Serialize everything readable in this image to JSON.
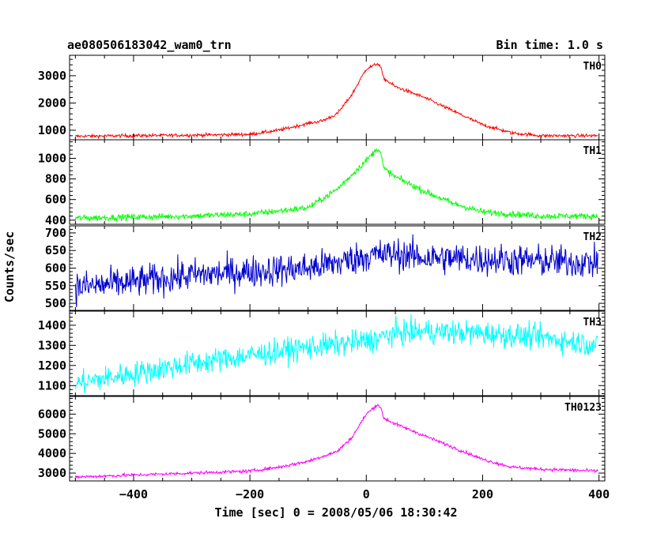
{
  "header": {
    "title": "ae080506183042_wam0_trn",
    "bin_time": "Bin time: 1.0 s"
  },
  "chart_data": {
    "type": "line",
    "xlabel": "Time [sec] 0 = 2008/05/06 18:30:42",
    "ylabel": "Counts/sec",
    "xlim": [
      -510,
      410
    ],
    "xticks": [
      -400,
      -200,
      0,
      200,
      400
    ],
    "x_tick_labels": [
      "−400",
      "−200",
      "0",
      "200",
      "400"
    ],
    "grid": false,
    "panels": [
      {
        "name": "TH0",
        "color": "#ff0000",
        "ylim": [
          650,
          3750
        ],
        "yticks": [
          1000,
          2000,
          3000
        ],
        "y_tick_labels": [
          "1000",
          "2000",
          "3000"
        ],
        "noise": 60,
        "points": [
          [
            -500,
            780
          ],
          [
            -400,
            800
          ],
          [
            -300,
            820
          ],
          [
            -200,
            850
          ],
          [
            -150,
            1000
          ],
          [
            -100,
            1250
          ],
          [
            -75,
            1350
          ],
          [
            -50,
            1600
          ],
          [
            -25,
            2300
          ],
          [
            0,
            3250
          ],
          [
            20,
            3450
          ],
          [
            25,
            3300
          ],
          [
            30,
            2900
          ],
          [
            50,
            2600
          ],
          [
            100,
            2200
          ],
          [
            150,
            1700
          ],
          [
            200,
            1200
          ],
          [
            250,
            900
          ],
          [
            300,
            800
          ],
          [
            400,
            800
          ]
        ]
      },
      {
        "name": "TH1",
        "color": "#00ff00",
        "ylim": [
          360,
          1180
        ],
        "yticks": [
          400,
          600,
          800,
          1000
        ],
        "y_tick_labels": [
          "400",
          "600",
          "800",
          "1000"
        ],
        "noise": 30,
        "points": [
          [
            -500,
            420
          ],
          [
            -400,
            430
          ],
          [
            -300,
            440
          ],
          [
            -200,
            460
          ],
          [
            -100,
            520
          ],
          [
            -50,
            700
          ],
          [
            0,
            980
          ],
          [
            20,
            1100
          ],
          [
            25,
            1050
          ],
          [
            30,
            900
          ],
          [
            50,
            820
          ],
          [
            100,
            680
          ],
          [
            150,
            560
          ],
          [
            200,
            480
          ],
          [
            300,
            440
          ],
          [
            400,
            440
          ]
        ]
      },
      {
        "name": "TH2",
        "color": "#0000cc",
        "ylim": [
          480,
          720
        ],
        "yticks": [
          500,
          550,
          600,
          650,
          700
        ],
        "y_tick_labels": [
          "500",
          "550",
          "600",
          "650",
          "700"
        ],
        "noise": 45,
        "points": [
          [
            -500,
            545
          ],
          [
            -400,
            560
          ],
          [
            -300,
            580
          ],
          [
            -200,
            590
          ],
          [
            -100,
            600
          ],
          [
            -50,
            615
          ],
          [
            0,
            635
          ],
          [
            50,
            640
          ],
          [
            100,
            630
          ],
          [
            200,
            625
          ],
          [
            300,
            620
          ],
          [
            400,
            615
          ]
        ]
      },
      {
        "name": "TH3",
        "color": "#00ffff",
        "ylim": [
          1050,
          1470
        ],
        "yticks": [
          1100,
          1200,
          1300,
          1400
        ],
        "y_tick_labels": [
          "1100",
          "1200",
          "1300",
          "1400"
        ],
        "noise": 60,
        "points": [
          [
            -500,
            1110
          ],
          [
            -400,
            1160
          ],
          [
            -300,
            1210
          ],
          [
            -200,
            1250
          ],
          [
            -100,
            1290
          ],
          [
            0,
            1320
          ],
          [
            50,
            1360
          ],
          [
            100,
            1370
          ],
          [
            200,
            1360
          ],
          [
            300,
            1340
          ],
          [
            400,
            1300
          ]
        ]
      },
      {
        "name": "TH0123",
        "color": "#ff00ff",
        "ylim": [
          2600,
          6900
        ],
        "yticks": [
          3000,
          4000,
          5000,
          6000
        ],
        "y_tick_labels": [
          "3000",
          "4000",
          "5000",
          "6000"
        ],
        "noise": 80,
        "points": [
          [
            -500,
            2800
          ],
          [
            -400,
            2900
          ],
          [
            -300,
            3000
          ],
          [
            -200,
            3100
          ],
          [
            -150,
            3300
          ],
          [
            -100,
            3600
          ],
          [
            -50,
            4100
          ],
          [
            -25,
            4800
          ],
          [
            0,
            6000
          ],
          [
            20,
            6500
          ],
          [
            25,
            6300
          ],
          [
            30,
            5800
          ],
          [
            50,
            5500
          ],
          [
            100,
            4900
          ],
          [
            150,
            4300
          ],
          [
            200,
            3700
          ],
          [
            250,
            3300
          ],
          [
            300,
            3200
          ],
          [
            400,
            3100
          ]
        ]
      }
    ]
  }
}
